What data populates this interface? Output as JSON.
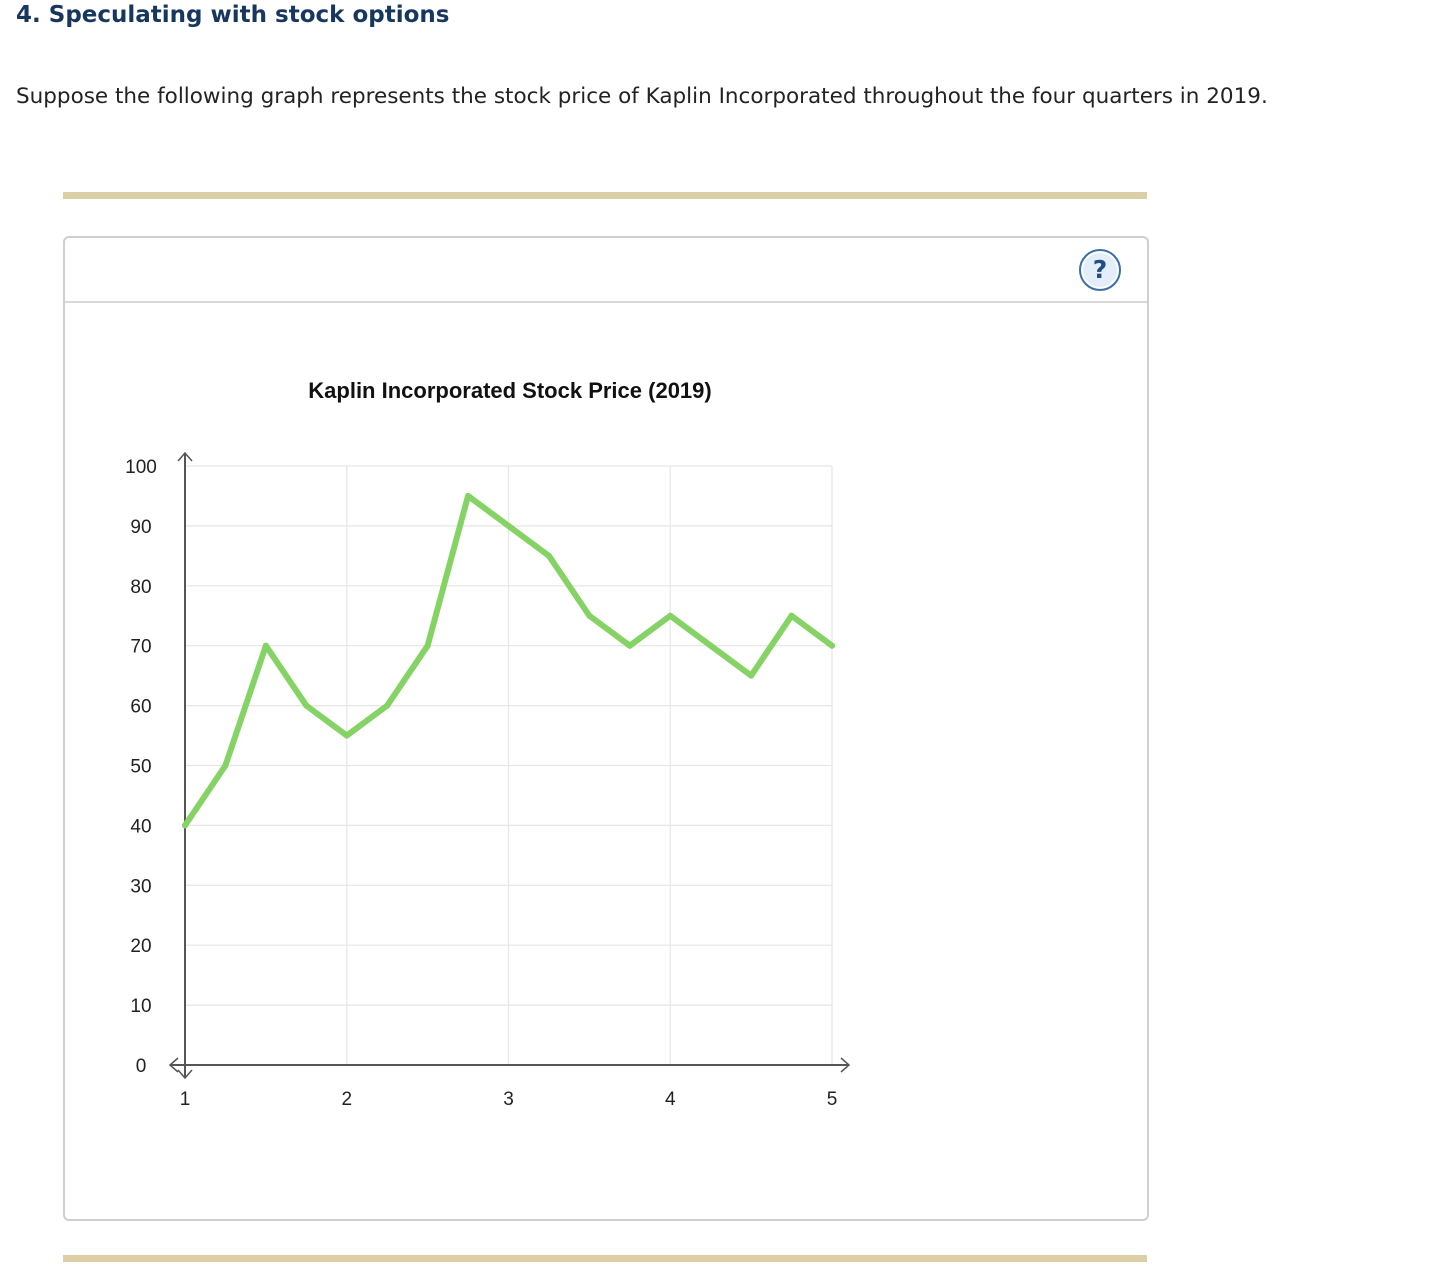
{
  "page": {
    "heading": "4. Speculating with stock options",
    "intro": "Suppose the following graph represents the stock price of Kaplin Incorporated throughout the four quarters in 2019."
  },
  "panel": {
    "help_icon": "question-mark-icon",
    "help_label": "?"
  },
  "colors": {
    "heading": "#17375e",
    "line": "#85d364",
    "grid": "#e6e6e6",
    "axis": "#555555",
    "rule": "#dccfa6"
  },
  "chart_data": {
    "type": "line",
    "title": "Kaplin Incorporated Stock Price (2019)",
    "xlabel": "",
    "ylabel": "",
    "xlim": [
      1,
      5
    ],
    "ylim": [
      0,
      100
    ],
    "x_ticks": [
      1,
      2,
      3,
      4,
      5
    ],
    "y_ticks": [
      0,
      10,
      20,
      30,
      40,
      50,
      60,
      70,
      80,
      90,
      100
    ],
    "grid": true,
    "series": [
      {
        "color": "#85d364",
        "x": [
          1,
          1.25,
          1.5,
          1.75,
          2,
          2.25,
          2.5,
          2.75,
          3,
          3.25,
          3.5,
          3.75,
          4,
          4.25,
          4.5,
          4.75,
          5
        ],
        "values": [
          40,
          50,
          70,
          60,
          55,
          60,
          70,
          95,
          90,
          85,
          75,
          70,
          75,
          70,
          65,
          75,
          70
        ]
      }
    ]
  }
}
